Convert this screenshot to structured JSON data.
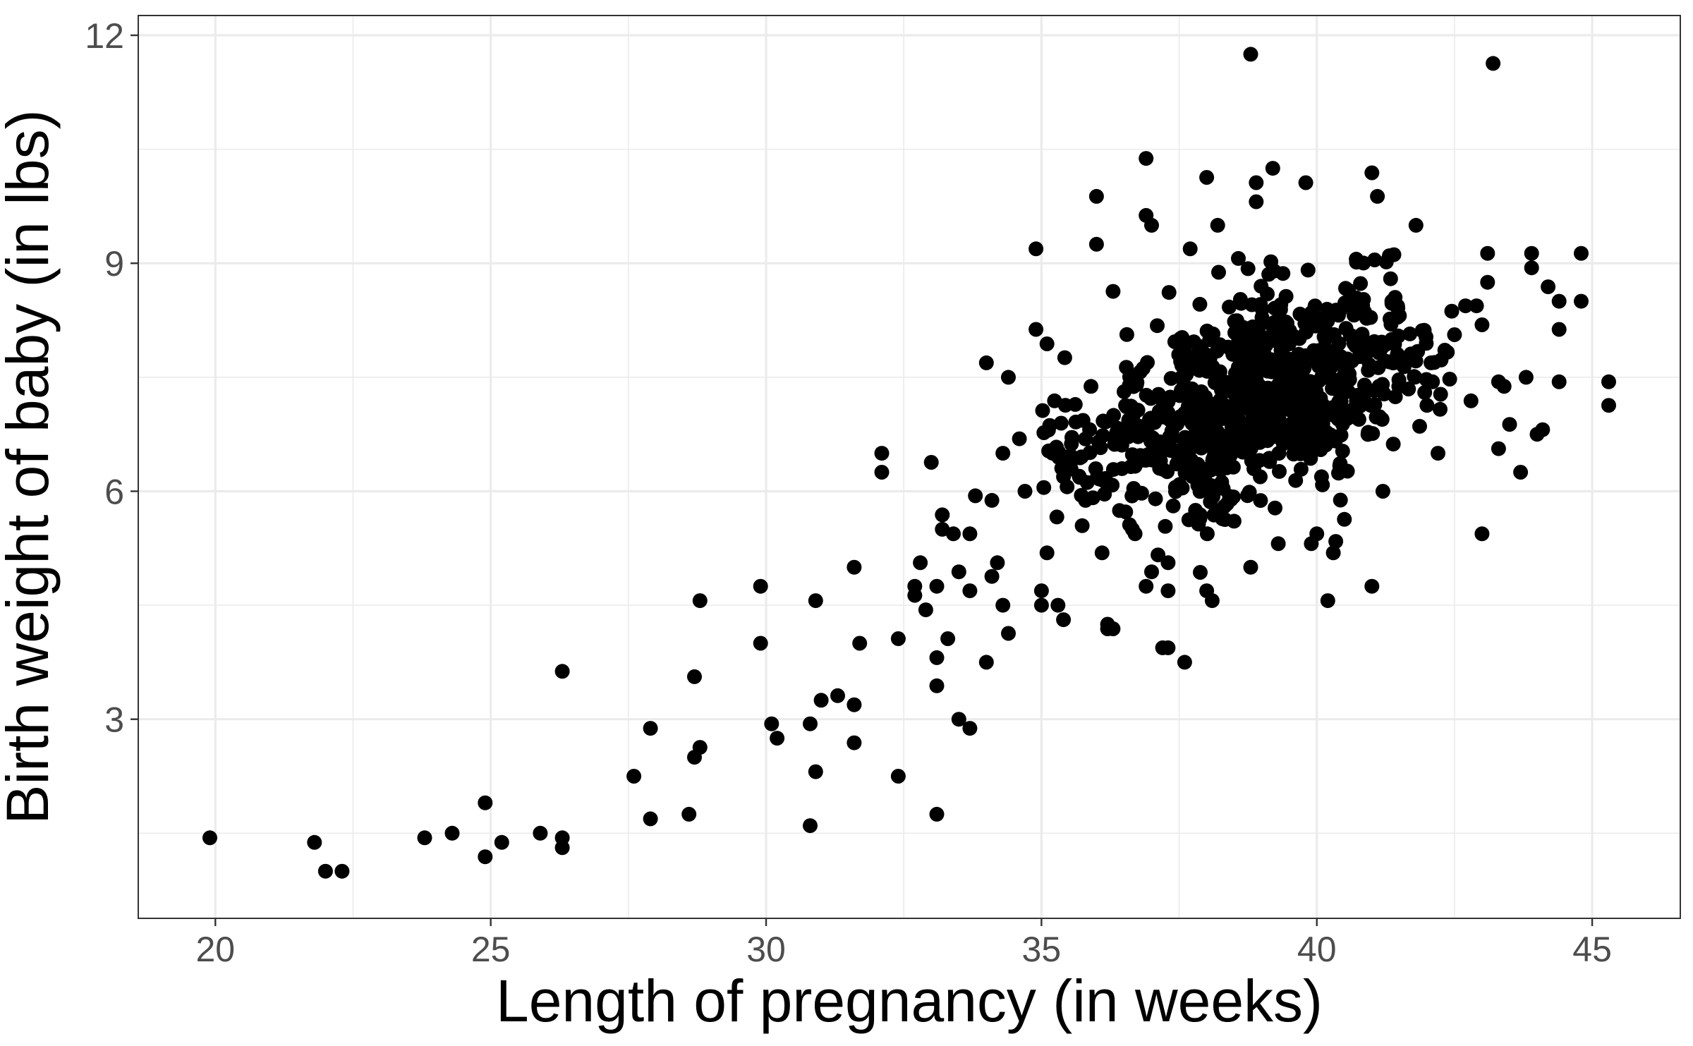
{
  "chart_data": {
    "type": "scatter",
    "title": "",
    "xlabel": "Length of pregnancy (in weeks)",
    "ylabel": "Birth weight of baby (in lbs)",
    "xlim": [
      18.6,
      46.6
    ],
    "ylim": [
      0.38,
      12.26
    ],
    "x_ticks": [
      20,
      25,
      30,
      35,
      40,
      45
    ],
    "y_ticks": [
      3,
      6,
      9,
      12
    ],
    "grid": true,
    "legend": "none",
    "point_color": "#000000",
    "grid_color": "#ebebeb",
    "seed": 7,
    "explicit_points": [
      [
        19.9,
        1.44
      ],
      [
        21.8,
        1.38
      ],
      [
        22.0,
        1.0
      ],
      [
        22.3,
        1.0
      ],
      [
        23.8,
        1.44
      ],
      [
        24.3,
        1.5
      ],
      [
        24.9,
        1.19
      ],
      [
        24.9,
        1.9
      ],
      [
        25.2,
        1.38
      ],
      [
        25.9,
        1.5
      ],
      [
        26.3,
        1.31
      ],
      [
        26.3,
        1.44
      ],
      [
        26.3,
        3.63
      ],
      [
        27.6,
        2.25
      ],
      [
        27.9,
        1.69
      ],
      [
        27.9,
        2.88
      ],
      [
        28.6,
        1.75
      ],
      [
        28.7,
        2.5
      ],
      [
        28.7,
        3.56
      ],
      [
        28.8,
        2.63
      ],
      [
        28.8,
        4.56
      ],
      [
        29.9,
        4.75
      ],
      [
        29.9,
        4.0
      ],
      [
        30.1,
        2.94
      ],
      [
        30.2,
        2.75
      ],
      [
        30.8,
        1.6
      ],
      [
        30.8,
        2.94
      ],
      [
        30.9,
        2.31
      ],
      [
        30.9,
        4.56
      ],
      [
        31.0,
        3.25
      ],
      [
        31.3,
        3.31
      ],
      [
        31.6,
        2.69
      ],
      [
        31.6,
        3.19
      ],
      [
        31.7,
        4.0
      ],
      [
        31.6,
        5.0
      ],
      [
        32.1,
        6.25
      ],
      [
        32.1,
        6.5
      ],
      [
        32.4,
        2.25
      ],
      [
        32.4,
        4.06
      ],
      [
        32.7,
        4.75
      ],
      [
        32.7,
        4.63
      ],
      [
        32.8,
        5.06
      ],
      [
        32.9,
        4.44
      ],
      [
        33.0,
        6.38
      ],
      [
        33.1,
        1.75
      ],
      [
        33.1,
        3.44
      ],
      [
        33.1,
        3.81
      ],
      [
        33.1,
        4.75
      ],
      [
        33.2,
        5.5
      ],
      [
        33.2,
        5.69
      ],
      [
        33.3,
        4.06
      ],
      [
        33.4,
        5.44
      ],
      [
        33.5,
        3.0
      ],
      [
        33.5,
        4.94
      ],
      [
        33.7,
        2.88
      ],
      [
        33.7,
        4.69
      ],
      [
        33.7,
        5.44
      ],
      [
        33.8,
        5.94
      ],
      [
        34.0,
        7.69
      ],
      [
        34.0,
        3.75
      ],
      [
        34.1,
        5.88
      ],
      [
        34.1,
        4.88
      ],
      [
        34.2,
        5.06
      ],
      [
        34.3,
        4.5
      ],
      [
        34.3,
        6.5
      ],
      [
        34.4,
        4.13
      ],
      [
        34.4,
        7.5
      ],
      [
        34.6,
        6.69
      ],
      [
        34.7,
        6.0
      ],
      [
        34.9,
        8.13
      ],
      [
        34.9,
        9.19
      ],
      [
        35.0,
        4.5
      ],
      [
        35.0,
        4.69
      ],
      [
        35.1,
        5.19
      ],
      [
        35.1,
        7.94
      ],
      [
        35.2,
        6.5
      ],
      [
        35.3,
        4.5
      ],
      [
        35.4,
        4.31
      ],
      [
        35.4,
        6.19
      ],
      [
        35.7,
        6.44
      ],
      [
        35.8,
        5.88
      ],
      [
        35.9,
        7.38
      ],
      [
        36.0,
        9.88
      ],
      [
        36.0,
        9.25
      ],
      [
        36.1,
        5.19
      ],
      [
        36.2,
        4.25
      ],
      [
        36.2,
        4.19
      ],
      [
        36.3,
        4.19
      ],
      [
        36.3,
        8.63
      ],
      [
        36.5,
        7.31
      ],
      [
        36.7,
        5.44
      ],
      [
        36.9,
        10.38
      ],
      [
        36.9,
        4.75
      ],
      [
        36.9,
        9.63
      ],
      [
        37.0,
        9.5
      ],
      [
        37.0,
        4.94
      ],
      [
        37.2,
        3.94
      ],
      [
        37.3,
        3.94
      ],
      [
        37.3,
        4.69
      ],
      [
        37.3,
        5.06
      ],
      [
        37.6,
        3.75
      ],
      [
        37.7,
        9.19
      ],
      [
        38.0,
        10.13
      ],
      [
        38.0,
        4.69
      ],
      [
        38.1,
        4.56
      ],
      [
        38.2,
        9.5
      ],
      [
        38.8,
        11.75
      ],
      [
        38.8,
        5.0
      ],
      [
        38.9,
        10.06
      ],
      [
        38.9,
        9.81
      ],
      [
        39.2,
        10.25
      ],
      [
        39.3,
        5.31
      ],
      [
        39.8,
        10.06
      ],
      [
        39.9,
        5.31
      ],
      [
        40.0,
        5.44
      ],
      [
        40.2,
        4.56
      ],
      [
        40.3,
        5.19
      ],
      [
        40.5,
        5.63
      ],
      [
        41.0,
        10.19
      ],
      [
        41.0,
        4.75
      ],
      [
        41.1,
        9.88
      ],
      [
        41.2,
        6.0
      ],
      [
        41.5,
        8.31
      ],
      [
        41.8,
        9.5
      ],
      [
        42.0,
        7.13
      ],
      [
        42.1,
        7.44
      ],
      [
        42.2,
        6.5
      ],
      [
        42.5,
        8.06
      ],
      [
        42.7,
        8.44
      ],
      [
        42.8,
        7.19
      ],
      [
        42.9,
        8.44
      ],
      [
        43.0,
        5.44
      ],
      [
        43.0,
        8.19
      ],
      [
        43.1,
        9.13
      ],
      [
        43.1,
        8.75
      ],
      [
        43.2,
        11.63
      ],
      [
        43.3,
        6.56
      ],
      [
        43.3,
        7.44
      ],
      [
        43.4,
        7.38
      ],
      [
        43.5,
        6.88
      ],
      [
        43.7,
        6.25
      ],
      [
        43.8,
        7.5
      ],
      [
        43.9,
        9.13
      ],
      [
        43.9,
        8.94
      ],
      [
        44.0,
        6.75
      ],
      [
        44.1,
        6.81
      ],
      [
        44.2,
        8.69
      ],
      [
        44.4,
        8.5
      ],
      [
        44.4,
        8.13
      ],
      [
        44.4,
        7.44
      ],
      [
        44.8,
        9.13
      ],
      [
        44.8,
        8.5
      ],
      [
        45.3,
        7.44
      ],
      [
        45.3,
        7.13
      ]
    ],
    "cluster_bands": [
      {
        "x_range": [
          35.0,
          36.5
        ],
        "y_range": [
          5.0,
          8.0
        ],
        "count": 55
      },
      {
        "x_range": [
          36.5,
          37.5
        ],
        "y_range": [
          4.9,
          8.9
        ],
        "count": 90
      },
      {
        "x_range": [
          37.5,
          38.5
        ],
        "y_range": [
          4.7,
          9.2
        ],
        "count": 170
      },
      {
        "x_range": [
          38.5,
          39.5
        ],
        "y_range": [
          5.2,
          9.7
        ],
        "count": 230
      },
      {
        "x_range": [
          39.5,
          40.5
        ],
        "y_range": [
          5.0,
          9.4
        ],
        "count": 170
      },
      {
        "x_range": [
          40.5,
          41.5
        ],
        "y_range": [
          5.9,
          9.6
        ],
        "count": 100
      },
      {
        "x_range": [
          41.5,
          42.5
        ],
        "y_range": [
          6.4,
          8.7
        ],
        "count": 25
      }
    ]
  }
}
